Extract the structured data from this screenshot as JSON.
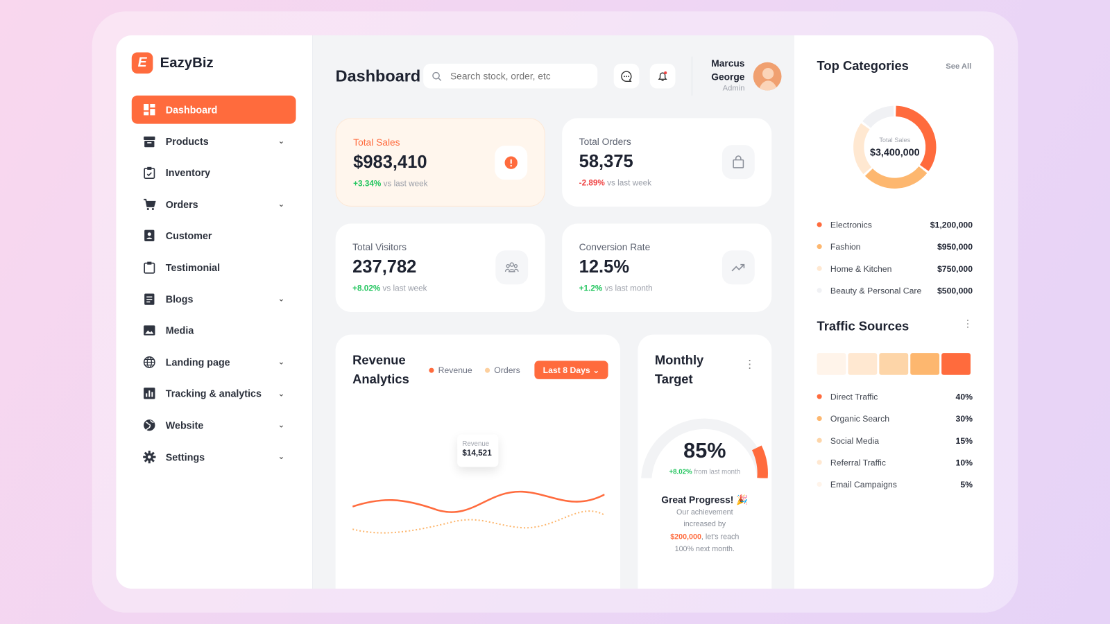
{
  "app": {
    "name": "EazyBiz",
    "logo_letter": "E"
  },
  "sidebar": {
    "items": [
      {
        "label": "Dashboard",
        "icon": "dashboard-icon",
        "active": true,
        "expandable": false
      },
      {
        "label": "Products",
        "icon": "archive-icon",
        "expandable": true
      },
      {
        "label": "Inventory",
        "icon": "clipboard-check-icon",
        "expandable": false
      },
      {
        "label": "Orders",
        "icon": "cart-icon",
        "expandable": true
      },
      {
        "label": "Customer",
        "icon": "contact-icon",
        "expandable": false
      },
      {
        "label": "Testimonial",
        "icon": "clipboard-icon",
        "expandable": false
      },
      {
        "label": "Blogs",
        "icon": "document-icon",
        "expandable": true
      },
      {
        "label": "Media",
        "icon": "image-icon",
        "expandable": false
      },
      {
        "label": "Landing page",
        "icon": "globe-icon",
        "expandable": true
      },
      {
        "label": "Tracking & analytics",
        "icon": "chart-icon",
        "expandable": true
      },
      {
        "label": "Website",
        "icon": "earth-icon",
        "expandable": true
      },
      {
        "label": "Settings",
        "icon": "gear-icon",
        "expandable": true
      }
    ]
  },
  "header": {
    "title": "Dashboard",
    "search_placeholder": "Search stock, order, etc",
    "user": {
      "first": "Marcus",
      "last": "George",
      "role": "Admin"
    }
  },
  "stats": [
    {
      "label": "Total Sales",
      "value": "$983,410",
      "change": "+3.34%",
      "suffix": "vs last week",
      "trend": "up",
      "icon": "alert-icon"
    },
    {
      "label": "Total Orders",
      "value": "58,375",
      "change": "-2.89%",
      "suffix": "vs last week",
      "trend": "down",
      "icon": "bag-icon"
    },
    {
      "label": "Total Visitors",
      "value": "237,782",
      "change": "+8.02%",
      "suffix": "vs last week",
      "trend": "up",
      "icon": "users-icon"
    },
    {
      "label": "Conversion Rate",
      "value": "12.5%",
      "change": "+1.2%",
      "suffix": "vs last month",
      "trend": "up",
      "icon": "trend-up-icon"
    }
  ],
  "revenue": {
    "title_1": "Revenue",
    "title_2": "Analytics",
    "legend": [
      "Revenue",
      "Orders"
    ],
    "range_button": "Last 8 Days",
    "tooltip": {
      "label": "Revenue",
      "value": "$14,521"
    }
  },
  "target": {
    "title_1": "Monthly",
    "title_2": "Target",
    "percent": "85%",
    "percent_value": 85,
    "change": "+8.02%",
    "change_suffix": "from last month",
    "message_title": "Great Progress! 🎉",
    "msg_1": "Our achievement",
    "msg_2": "increased by",
    "msg_amount": "$200,000",
    "msg_3": ", let's reach",
    "msg_4": "100% next month."
  },
  "top_categories": {
    "title": "Top Categories",
    "see_all": "See All",
    "center_label": "Total Sales",
    "center_value": "$3,400,000",
    "items": [
      {
        "name": "Electronics",
        "value": "$1,200,000",
        "amount": 1200000,
        "color": "#ff6b3d"
      },
      {
        "name": "Fashion",
        "value": "$950,000",
        "amount": 950000,
        "color": "#fdb76f"
      },
      {
        "name": "Home & Kitchen",
        "value": "$750,000",
        "amount": 750000,
        "color": "#ffe8d1"
      },
      {
        "name": "Beauty & Personal Care",
        "value": "$500,000",
        "amount": 500000,
        "color": "#f0f1f4"
      }
    ]
  },
  "traffic": {
    "title": "Traffic Sources",
    "items": [
      {
        "name": "Direct Traffic",
        "value": "40%",
        "color": "#ff6b3d"
      },
      {
        "name": "Organic Search",
        "value": "30%",
        "color": "#fdb76f"
      },
      {
        "name": "Social Media",
        "value": "15%",
        "color": "#fdd5a8"
      },
      {
        "name": "Referral Traffic",
        "value": "10%",
        "color": "#ffe8d1"
      },
      {
        "name": "Email Campaigns",
        "value": "5%",
        "color": "#fff4ea"
      }
    ]
  },
  "colors": {
    "accent": "#ff6b3d",
    "positive": "#22c55e",
    "negative": "#ef4444"
  }
}
